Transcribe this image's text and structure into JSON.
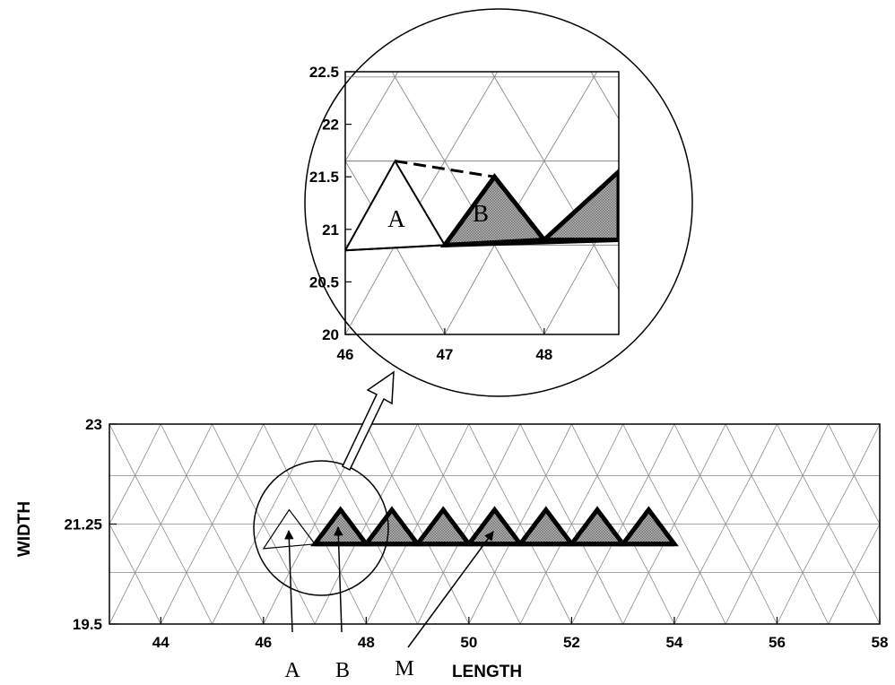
{
  "main_plot": {
    "xlabel": "LENGTH",
    "ylabel": "WIDTH",
    "xlim": [
      43,
      58
    ],
    "ylim": [
      19.5,
      23
    ],
    "xticks": [
      "44",
      "46",
      "48",
      "50",
      "52",
      "54",
      "56",
      "58"
    ],
    "yticks": [
      "19.5",
      "21.25",
      "23"
    ],
    "mesh_spacing": 1,
    "crack_triangle_apex_x": [
      47.5,
      48.5,
      49.5,
      50.5,
      51.5,
      52.5,
      53.5
    ],
    "crack_triangle_base": [
      47,
      54
    ],
    "crack_apex_y": 21.5,
    "crack_base_y": 20.9
  },
  "inset_plot": {
    "xlim": [
      46,
      48.75
    ],
    "ylim": [
      20,
      22.5
    ],
    "xticks": [
      "46",
      "47",
      "48"
    ],
    "yticks": [
      "20",
      "20.5",
      "21",
      "21.5",
      "22",
      "22.5"
    ],
    "element_A": {
      "label": "A",
      "vertices": [
        [
          46,
          20.8
        ],
        [
          46.5,
          21.65
        ],
        [
          47,
          20.85
        ]
      ]
    },
    "element_B": {
      "label": "B",
      "vertices": [
        [
          47,
          20.85
        ],
        [
          47.5,
          21.5
        ],
        [
          48,
          20.9
        ]
      ]
    },
    "element_B2": {
      "vertices": [
        [
          48,
          20.9
        ],
        [
          48.75,
          21.55
        ],
        [
          48.75,
          20.9
        ]
      ]
    }
  },
  "annotations": {
    "label_a": "A",
    "label_b": "B",
    "label_m": "M"
  }
}
